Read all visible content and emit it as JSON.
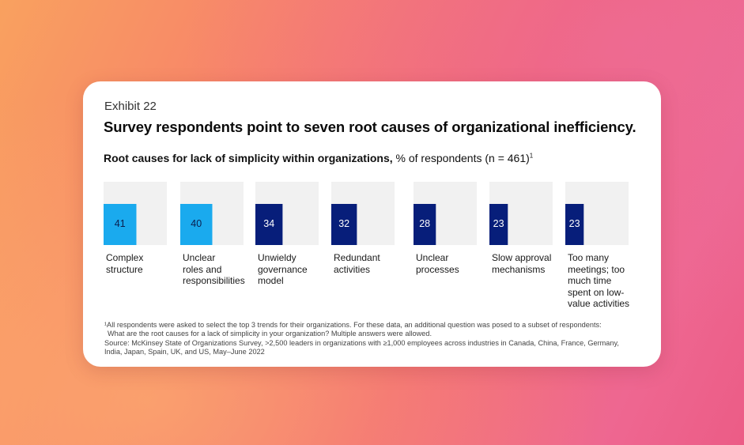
{
  "exhibit_label": "Exhibit 22",
  "title": "Survey respondents point to seven root causes of organizational inefficiency.",
  "subtitle_bold": "Root causes for lack of simplicity within organizations,",
  "subtitle_rest": " % of respondents (n = 461)",
  "subtitle_note_mark": "1",
  "colors": {
    "highlight_bar": "#1aaaee",
    "standard_bar": "#071e7a",
    "track": "#f1f1f1",
    "highlight_text": "#0b1f4f",
    "standard_text": "#ffffff"
  },
  "chart_data": {
    "type": "bar",
    "ylim": [
      0,
      100
    ],
    "categories": [
      "Complex structure",
      "Unclear roles and responsibilities",
      "Unwieldy governance model",
      "Redundant activities",
      "Unclear processes",
      "Slow approval mechanisms",
      "Too many meetings; too much time spent on low-value activities"
    ],
    "category_lines": [
      [
        "Complex",
        "structure"
      ],
      [
        "Unclear",
        "roles and",
        "responsibilities"
      ],
      [
        "Unwieldy",
        "governance",
        "model"
      ],
      [
        "Redundant",
        "activities"
      ],
      [
        "Unclear",
        "processes"
      ],
      [
        "Slow approval",
        "mechanisms"
      ],
      [
        "Too many",
        "meetings; too",
        "much time",
        "spent on low-",
        "value activities"
      ]
    ],
    "values": [
      41,
      40,
      34,
      32,
      28,
      23,
      23
    ],
    "highlighted": [
      true,
      true,
      false,
      false,
      false,
      false,
      false
    ]
  },
  "footnotes": {
    "note_line1": "¹All respondents were asked to select the top 3 trends for their organizations. For these data, an additional question was posed to a subset of respondents:",
    "note_line2": "What are the root causes for a lack of simplicity in your organization? Multiple answers were allowed.",
    "source_line1": "Source: McKinsey State of Organizations Survey, >2,500 leaders in organizations with ≥1,000 employees across industries in Canada, China, France, Germany,",
    "source_line2": "India, Japan, Spain, UK, and US, May–June 2022"
  }
}
